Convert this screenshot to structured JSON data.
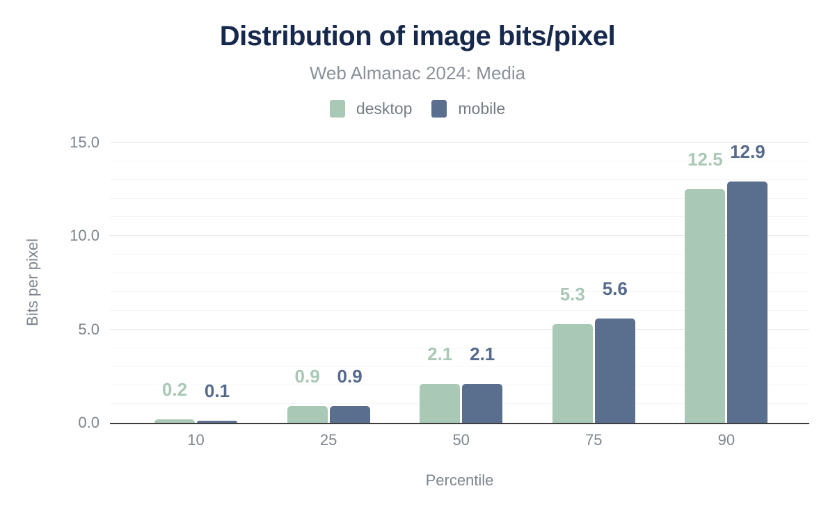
{
  "header": {
    "title": "Distribution of image bits/pixel",
    "subtitle": "Web Almanac 2024: Media"
  },
  "axes": {
    "xlabel": "Percentile",
    "ylabel": "Bits per pixel"
  },
  "colors": {
    "title": "#16294c",
    "muted_text": "#7d848d",
    "axis_line": "#3c3c3c",
    "grid_major": "#e3e5e7",
    "grid_minor": "#f3f4f5",
    "desktop": "#a9c8b5",
    "mobile": "#5a6e8e",
    "desktop_label": "#a9c8b5",
    "mobile_label": "#556a8c"
  },
  "chart_data": {
    "type": "bar",
    "title": "Distribution of image bits/pixel",
    "subtitle": "Web Almanac 2024: Media",
    "xlabel": "Percentile",
    "ylabel": "Bits per pixel",
    "categories": [
      "10",
      "25",
      "50",
      "75",
      "90"
    ],
    "series": [
      {
        "name": "desktop",
        "color": "#a9c8b5",
        "label_color": "#a9c8b5",
        "values": [
          0.2,
          0.9,
          2.1,
          5.3,
          12.5
        ],
        "labels": [
          "0.2",
          "0.9",
          "2.1",
          "5.3",
          "12.5"
        ]
      },
      {
        "name": "mobile",
        "color": "#5a6e8e",
        "label_color": "#556a8c",
        "values": [
          0.1,
          0.9,
          2.1,
          5.6,
          12.9
        ],
        "labels": [
          "0.1",
          "0.9",
          "2.1",
          "5.6",
          "12.9"
        ]
      }
    ],
    "ylim": [
      0,
      15
    ],
    "yticks": [
      0,
      5,
      10,
      15
    ],
    "ytick_labels": [
      "0.0",
      "5.0",
      "10.0",
      "15.0"
    ],
    "minor_grid_step": 1,
    "grid": true,
    "legend_position": "top",
    "value_labels_shown": true
  }
}
